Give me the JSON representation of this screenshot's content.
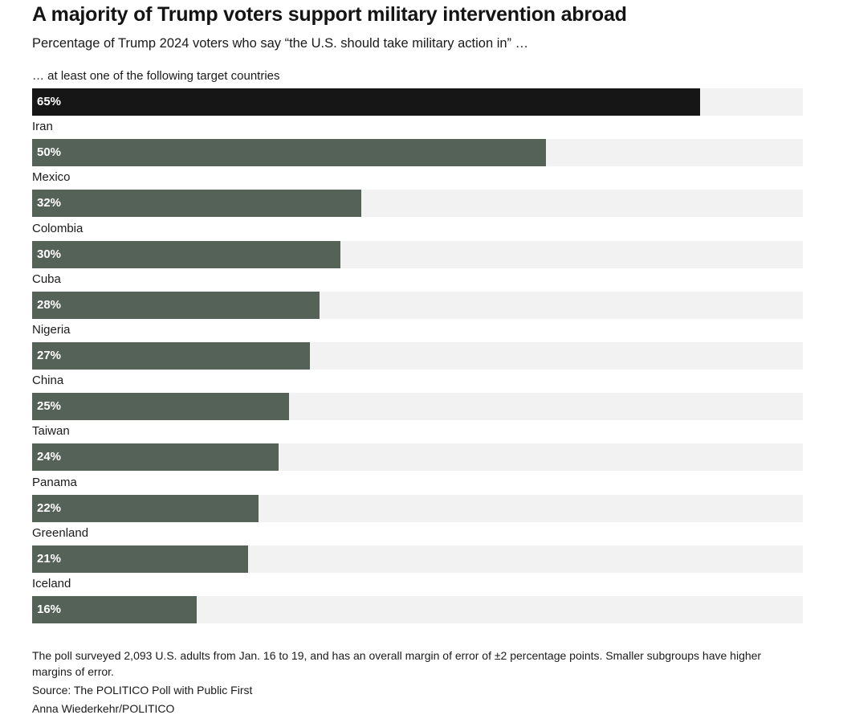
{
  "header": {
    "title": "A majority of Trump voters support military intervention abroad",
    "subtitle": "Percentage of Trump 2024 voters who say “the U.S. should take military action in” …"
  },
  "colors": {
    "highlight": "#161616",
    "bar": "#556257",
    "track": "#f2f2f2"
  },
  "chart_data": {
    "type": "bar",
    "orientation": "horizontal",
    "title": "A majority of Trump voters support military intervention abroad",
    "subtitle": "Percentage of Trump 2024 voters who say “the U.S. should take military action in” …",
    "xlim": [
      0,
      75
    ],
    "categories": [
      "… at least one of the following target countries",
      "Iran",
      "Mexico",
      "Colombia",
      "Cuba",
      "Nigeria",
      "China",
      "Taiwan",
      "Panama",
      "Greenland",
      "Iceland"
    ],
    "values": [
      65,
      50,
      32,
      30,
      28,
      27,
      25,
      24,
      22,
      21,
      16
    ],
    "value_labels": [
      "65%",
      "50%",
      "32%",
      "30%",
      "28%",
      "27%",
      "25%",
      "24%",
      "22%",
      "21%",
      "16%"
    ],
    "highlight_index": 0
  },
  "footer": {
    "note": "The poll surveyed 2,093 U.S. adults from Jan. 16 to 19, and has an overall margin of error of ±2 percentage points. Smaller subgroups have higher margins of error.",
    "source": "Source: The POLITICO Poll with Public First",
    "credit": "Anna Wiederkehr/POLITICO"
  }
}
